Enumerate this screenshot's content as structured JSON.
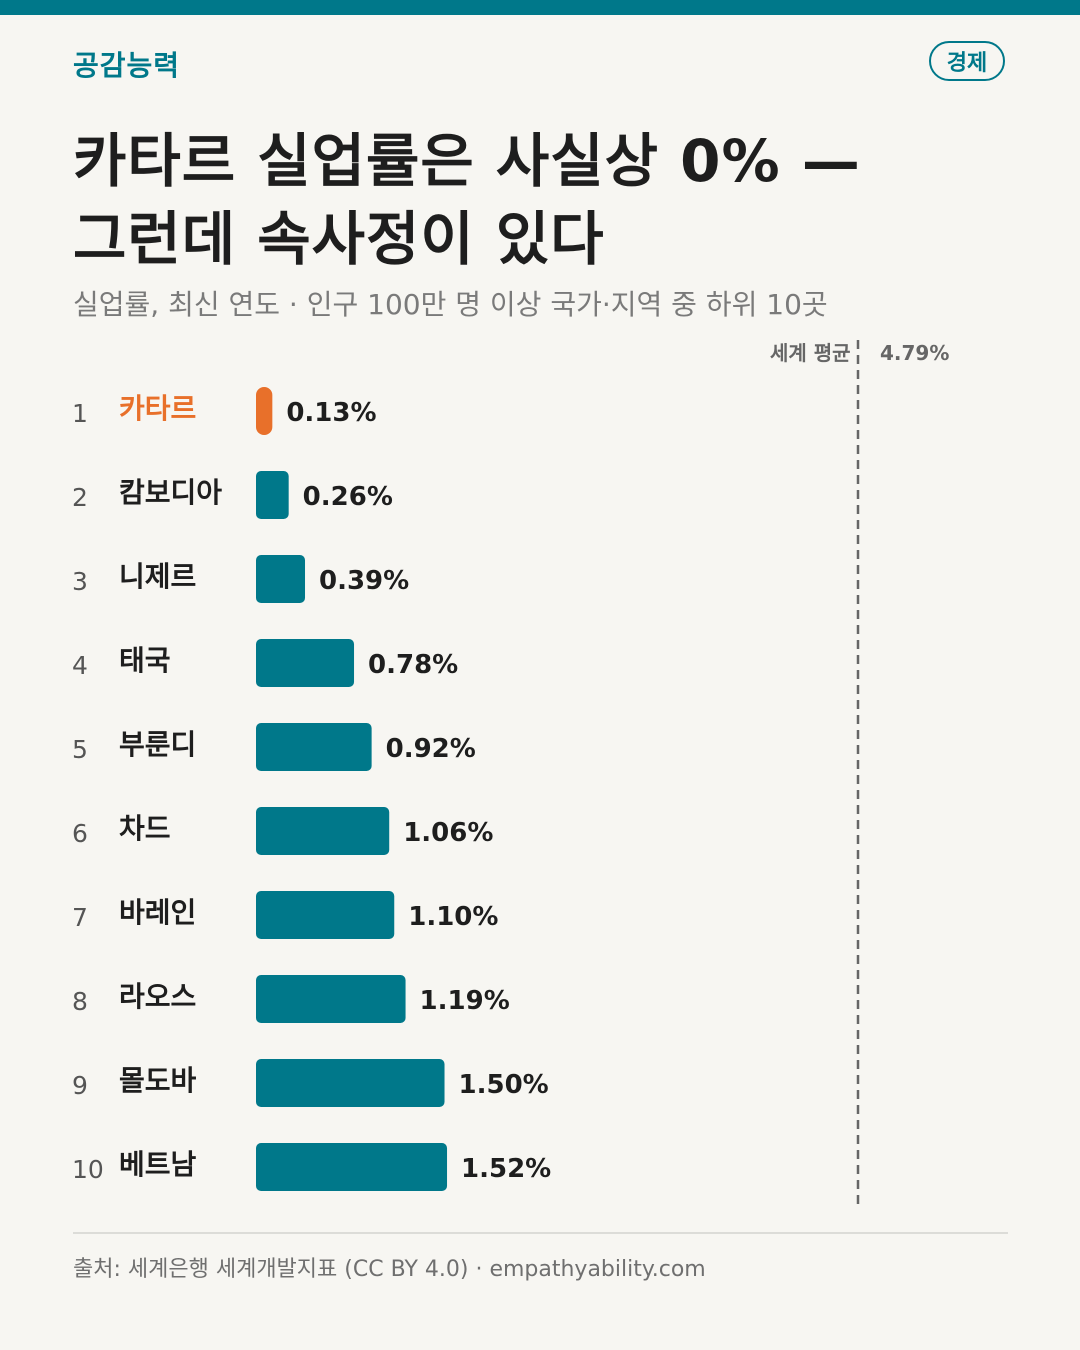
{
  "header": {
    "brand": "공감능력",
    "badge": "경제"
  },
  "title_line1": "카타르 실업률은 사실상 0% —",
  "title_line2": "그런데 속사정이 있다",
  "subtitle": "실업률, 최신 연도 · 인구 100만 명 이상 국가·지역 중 하위 10곳",
  "footer": {
    "source": "출처: 세계은행 세계개발지표 (CC BY 4.0) · empathyability.com"
  },
  "colors": {
    "accent": "#00788a",
    "highlight": "#e8702a",
    "background": "#f7f6f2"
  },
  "chart_data": {
    "type": "bar",
    "orientation": "horizontal",
    "categories": [
      "카타르",
      "캄보디아",
      "니제르",
      "태국",
      "부룬디",
      "차드",
      "바레인",
      "라오스",
      "몰도바",
      "베트남"
    ],
    "ranks": [
      "1",
      "2",
      "3",
      "4",
      "5",
      "6",
      "7",
      "8",
      "9",
      "10"
    ],
    "values": [
      0.13,
      0.26,
      0.39,
      0.78,
      0.92,
      1.06,
      1.1,
      1.19,
      1.5,
      1.52
    ],
    "value_labels": [
      "0.13%",
      "0.26%",
      "0.39%",
      "0.78%",
      "0.92%",
      "1.06%",
      "1.10%",
      "1.19%",
      "1.50%",
      "1.52%"
    ],
    "highlighted": "카타르",
    "reference_line": {
      "label": "세계 평균",
      "value": 4.79,
      "value_label": "4.79%"
    },
    "xlim": [
      0,
      4.79
    ],
    "grid": false
  }
}
